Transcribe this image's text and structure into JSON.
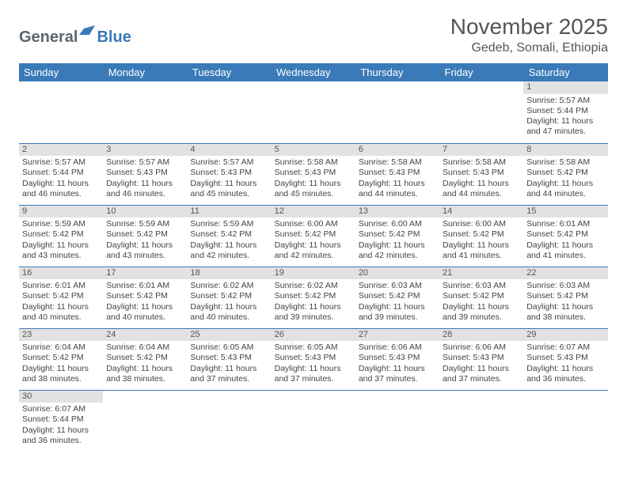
{
  "logo": {
    "text_general": "General",
    "text_blue": "Blue"
  },
  "title": "November 2025",
  "location": "Gedeb, Somali, Ethiopia",
  "colors": {
    "header_bg": "#3a7ab8",
    "header_text": "#ffffff",
    "daynum_bg": "#e2e2e2",
    "border": "#3a7ab8",
    "body_text": "#444444",
    "title_text": "#555555"
  },
  "weekdays": [
    "Sunday",
    "Monday",
    "Tuesday",
    "Wednesday",
    "Thursday",
    "Friday",
    "Saturday"
  ],
  "weeks": [
    [
      null,
      null,
      null,
      null,
      null,
      null,
      {
        "n": "1",
        "sr": "Sunrise: 5:57 AM",
        "ss": "Sunset: 5:44 PM",
        "dl": "Daylight: 11 hours and 47 minutes."
      }
    ],
    [
      {
        "n": "2",
        "sr": "Sunrise: 5:57 AM",
        "ss": "Sunset: 5:44 PM",
        "dl": "Daylight: 11 hours and 46 minutes."
      },
      {
        "n": "3",
        "sr": "Sunrise: 5:57 AM",
        "ss": "Sunset: 5:43 PM",
        "dl": "Daylight: 11 hours and 46 minutes."
      },
      {
        "n": "4",
        "sr": "Sunrise: 5:57 AM",
        "ss": "Sunset: 5:43 PM",
        "dl": "Daylight: 11 hours and 45 minutes."
      },
      {
        "n": "5",
        "sr": "Sunrise: 5:58 AM",
        "ss": "Sunset: 5:43 PM",
        "dl": "Daylight: 11 hours and 45 minutes."
      },
      {
        "n": "6",
        "sr": "Sunrise: 5:58 AM",
        "ss": "Sunset: 5:43 PM",
        "dl": "Daylight: 11 hours and 44 minutes."
      },
      {
        "n": "7",
        "sr": "Sunrise: 5:58 AM",
        "ss": "Sunset: 5:43 PM",
        "dl": "Daylight: 11 hours and 44 minutes."
      },
      {
        "n": "8",
        "sr": "Sunrise: 5:58 AM",
        "ss": "Sunset: 5:42 PM",
        "dl": "Daylight: 11 hours and 44 minutes."
      }
    ],
    [
      {
        "n": "9",
        "sr": "Sunrise: 5:59 AM",
        "ss": "Sunset: 5:42 PM",
        "dl": "Daylight: 11 hours and 43 minutes."
      },
      {
        "n": "10",
        "sr": "Sunrise: 5:59 AM",
        "ss": "Sunset: 5:42 PM",
        "dl": "Daylight: 11 hours and 43 minutes."
      },
      {
        "n": "11",
        "sr": "Sunrise: 5:59 AM",
        "ss": "Sunset: 5:42 PM",
        "dl": "Daylight: 11 hours and 42 minutes."
      },
      {
        "n": "12",
        "sr": "Sunrise: 6:00 AM",
        "ss": "Sunset: 5:42 PM",
        "dl": "Daylight: 11 hours and 42 minutes."
      },
      {
        "n": "13",
        "sr": "Sunrise: 6:00 AM",
        "ss": "Sunset: 5:42 PM",
        "dl": "Daylight: 11 hours and 42 minutes."
      },
      {
        "n": "14",
        "sr": "Sunrise: 6:00 AM",
        "ss": "Sunset: 5:42 PM",
        "dl": "Daylight: 11 hours and 41 minutes."
      },
      {
        "n": "15",
        "sr": "Sunrise: 6:01 AM",
        "ss": "Sunset: 5:42 PM",
        "dl": "Daylight: 11 hours and 41 minutes."
      }
    ],
    [
      {
        "n": "16",
        "sr": "Sunrise: 6:01 AM",
        "ss": "Sunset: 5:42 PM",
        "dl": "Daylight: 11 hours and 40 minutes."
      },
      {
        "n": "17",
        "sr": "Sunrise: 6:01 AM",
        "ss": "Sunset: 5:42 PM",
        "dl": "Daylight: 11 hours and 40 minutes."
      },
      {
        "n": "18",
        "sr": "Sunrise: 6:02 AM",
        "ss": "Sunset: 5:42 PM",
        "dl": "Daylight: 11 hours and 40 minutes."
      },
      {
        "n": "19",
        "sr": "Sunrise: 6:02 AM",
        "ss": "Sunset: 5:42 PM",
        "dl": "Daylight: 11 hours and 39 minutes."
      },
      {
        "n": "20",
        "sr": "Sunrise: 6:03 AM",
        "ss": "Sunset: 5:42 PM",
        "dl": "Daylight: 11 hours and 39 minutes."
      },
      {
        "n": "21",
        "sr": "Sunrise: 6:03 AM",
        "ss": "Sunset: 5:42 PM",
        "dl": "Daylight: 11 hours and 39 minutes."
      },
      {
        "n": "22",
        "sr": "Sunrise: 6:03 AM",
        "ss": "Sunset: 5:42 PM",
        "dl": "Daylight: 11 hours and 38 minutes."
      }
    ],
    [
      {
        "n": "23",
        "sr": "Sunrise: 6:04 AM",
        "ss": "Sunset: 5:42 PM",
        "dl": "Daylight: 11 hours and 38 minutes."
      },
      {
        "n": "24",
        "sr": "Sunrise: 6:04 AM",
        "ss": "Sunset: 5:42 PM",
        "dl": "Daylight: 11 hours and 38 minutes."
      },
      {
        "n": "25",
        "sr": "Sunrise: 6:05 AM",
        "ss": "Sunset: 5:43 PM",
        "dl": "Daylight: 11 hours and 37 minutes."
      },
      {
        "n": "26",
        "sr": "Sunrise: 6:05 AM",
        "ss": "Sunset: 5:43 PM",
        "dl": "Daylight: 11 hours and 37 minutes."
      },
      {
        "n": "27",
        "sr": "Sunrise: 6:06 AM",
        "ss": "Sunset: 5:43 PM",
        "dl": "Daylight: 11 hours and 37 minutes."
      },
      {
        "n": "28",
        "sr": "Sunrise: 6:06 AM",
        "ss": "Sunset: 5:43 PM",
        "dl": "Daylight: 11 hours and 37 minutes."
      },
      {
        "n": "29",
        "sr": "Sunrise: 6:07 AM",
        "ss": "Sunset: 5:43 PM",
        "dl": "Daylight: 11 hours and 36 minutes."
      }
    ],
    [
      {
        "n": "30",
        "sr": "Sunrise: 6:07 AM",
        "ss": "Sunset: 5:44 PM",
        "dl": "Daylight: 11 hours and 36 minutes."
      },
      null,
      null,
      null,
      null,
      null,
      null
    ]
  ]
}
